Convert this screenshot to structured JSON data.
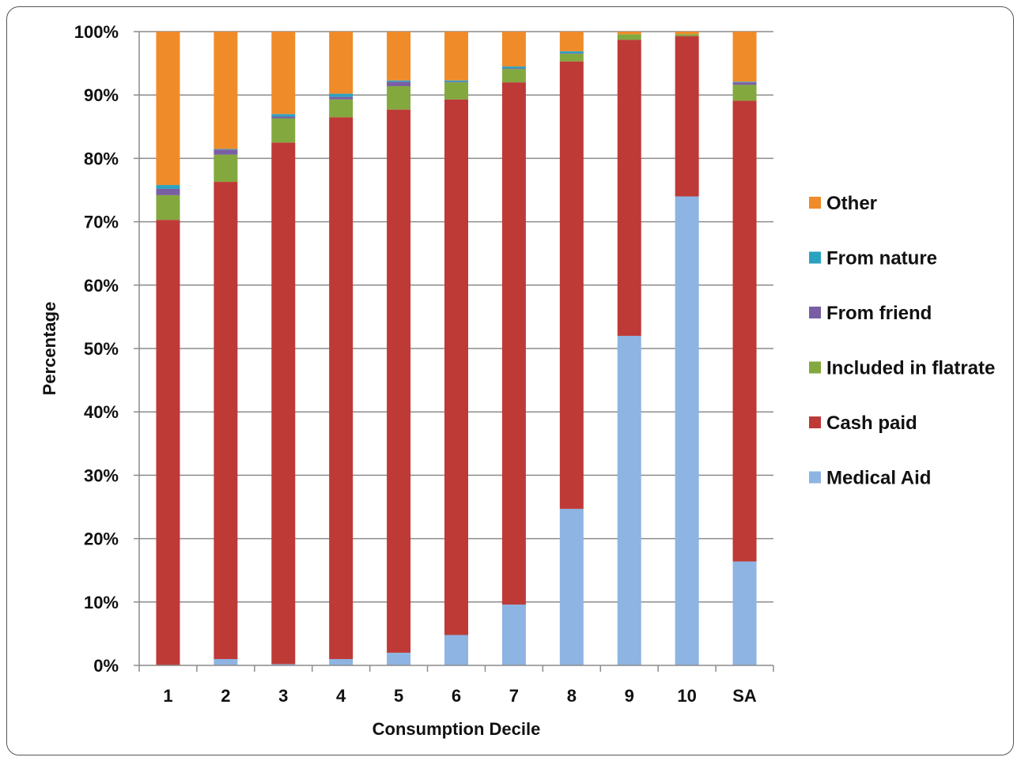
{
  "chart_data": {
    "type": "bar",
    "stacked": true,
    "percent": true,
    "title": "",
    "xlabel": "Consumption Decile",
    "ylabel": "Percentage",
    "ylim": [
      0,
      100
    ],
    "yticks": [
      "0%",
      "10%",
      "20%",
      "30%",
      "40%",
      "50%",
      "60%",
      "70%",
      "80%",
      "90%",
      "100%"
    ],
    "categories": [
      "1",
      "2",
      "3",
      "4",
      "5",
      "6",
      "7",
      "8",
      "9",
      "10",
      "SA"
    ],
    "grid": true,
    "legend_position": "right",
    "series": [
      {
        "name": "Medical Aid",
        "color": "#8db4e2",
        "values": [
          0.0,
          1.0,
          0.2,
          1.0,
          2.0,
          4.8,
          9.6,
          24.7,
          52.0,
          74.0,
          16.4
        ]
      },
      {
        "name": "Cash paid",
        "color": "#be3a37",
        "values": [
          70.3,
          75.3,
          82.3,
          85.5,
          85.7,
          84.5,
          82.4,
          70.6,
          46.7,
          25.3,
          72.7
        ]
      },
      {
        "name": "Included in flatrate",
        "color": "#83a83e",
        "values": [
          3.9,
          4.3,
          3.8,
          2.8,
          3.7,
          2.7,
          2.1,
          1.2,
          0.9,
          0.3,
          2.5
        ]
      },
      {
        "name": "From friend",
        "color": "#7a5ea3",
        "values": [
          1.0,
          0.8,
          0.3,
          0.4,
          0.7,
          0.1,
          0.1,
          0.1,
          0.0,
          0.0,
          0.4
        ]
      },
      {
        "name": "From nature",
        "color": "#2aa3c0",
        "values": [
          0.6,
          0.1,
          0.4,
          0.5,
          0.2,
          0.2,
          0.3,
          0.3,
          0.0,
          0.0,
          0.1
        ]
      },
      {
        "name": "Other",
        "color": "#f08b2a",
        "values": [
          24.2,
          18.5,
          13.0,
          9.8,
          7.7,
          7.7,
          5.5,
          3.1,
          0.4,
          0.4,
          7.9
        ]
      }
    ],
    "legend_order": [
      "Other",
      "From nature",
      "From friend",
      "Included in flatrate",
      "Cash paid",
      "Medical Aid"
    ]
  }
}
